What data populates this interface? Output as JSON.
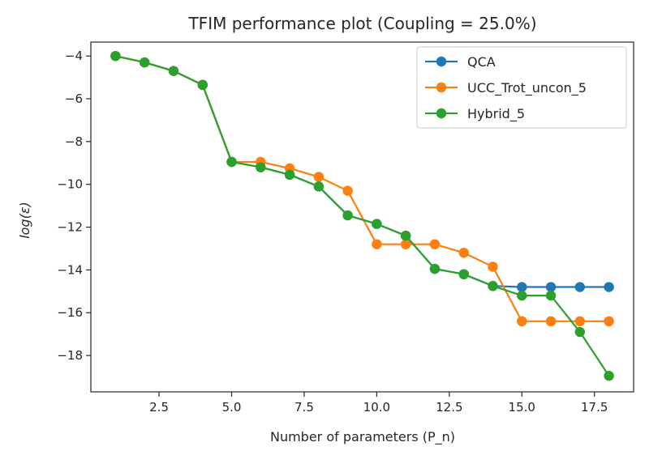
{
  "chart_data": {
    "type": "line",
    "title": "TFIM performance plot (Coupling = 25.0%)",
    "xlabel": "Number of parameters (P_n)",
    "ylabel": "log(ε)",
    "xlim": [
      0.15,
      18.85
    ],
    "ylim": [
      -19.7,
      -3.35
    ],
    "xticks": [
      2.5,
      5.0,
      7.5,
      10.0,
      12.5,
      15.0,
      17.5
    ],
    "xtick_labels": [
      "2.5",
      "5.0",
      "7.5",
      "10.0",
      "12.5",
      "15.0",
      "17.5"
    ],
    "yticks": [
      -4,
      -6,
      -8,
      -10,
      -12,
      -14,
      -16,
      -18
    ],
    "ytick_labels": [
      "−4",
      "−6",
      "−8",
      "−10",
      "−12",
      "−14",
      "−16",
      "−18"
    ],
    "grid": false,
    "legend_position": "top-right",
    "x": [
      1,
      2,
      3,
      4,
      5,
      6,
      7,
      8,
      9,
      10,
      11,
      12,
      13,
      14,
      15,
      16,
      17,
      18
    ],
    "series": [
      {
        "name": "QCA",
        "color": "#1f77b4",
        "values": [
          -4.0,
          -4.3,
          -4.7,
          -5.35,
          -8.95,
          -9.2,
          -9.55,
          -10.1,
          -11.45,
          -11.85,
          -12.4,
          -13.95,
          -14.2,
          -14.75,
          -14.8,
          -14.8,
          -14.8,
          -14.8
        ]
      },
      {
        "name": "UCC_Trot_uncon_5",
        "color": "#ff7f0e",
        "values": [
          -4.0,
          -4.3,
          -4.7,
          -5.35,
          -8.95,
          -8.95,
          -9.25,
          -9.65,
          -10.3,
          -12.8,
          -12.8,
          -12.8,
          -13.2,
          -13.85,
          -16.4,
          -16.4,
          -16.4,
          -16.4
        ]
      },
      {
        "name": "Hybrid_5",
        "color": "#2ca02c",
        "values": [
          -4.0,
          -4.3,
          -4.7,
          -5.35,
          -8.95,
          -9.2,
          -9.55,
          -10.1,
          -11.45,
          -11.85,
          -12.4,
          -13.95,
          -14.2,
          -14.75,
          -15.2,
          -15.2,
          -16.9,
          -18.95
        ]
      }
    ]
  }
}
